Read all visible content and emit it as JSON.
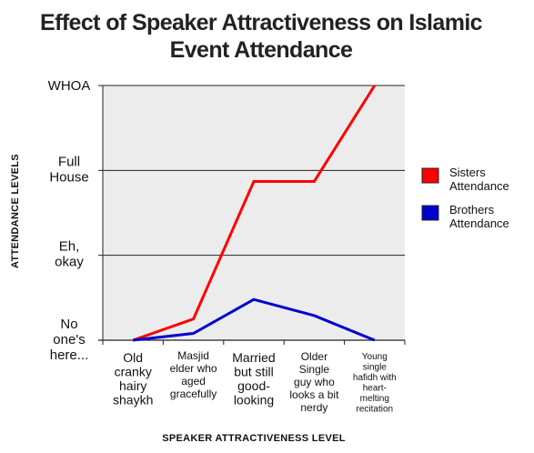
{
  "chart_data": {
    "type": "line",
    "title": [
      "Effect of Speaker Attractiveness on Islamic",
      "Event Attendance"
    ],
    "xlabel": "SPEAKER ATTRACTIVENESS LEVEL",
    "ylabel": "ATTENDANCE LEVELS",
    "categories": [
      [
        "Old",
        "cranky",
        "hairy",
        "shaykh"
      ],
      [
        "Masjid",
        "elder who",
        "aged",
        "gracefully"
      ],
      [
        "Married",
        "but still",
        "good-",
        "looking"
      ],
      [
        "Older",
        "Single",
        "guy who",
        "looks a bit",
        "nerdy"
      ],
      [
        "Young",
        "single",
        "hafidh with",
        "heart-",
        "melting",
        "recitation"
      ]
    ],
    "y_ticks": [
      [
        "No",
        "one's",
        "here..."
      ],
      [
        "Eh,",
        "okay"
      ],
      [
        "Full",
        "House"
      ],
      [
        "WHOA"
      ]
    ],
    "ylim": [
      0,
      3
    ],
    "grid": true,
    "legend_position": "right",
    "series": [
      {
        "name": [
          "Sisters",
          "Attendance"
        ],
        "color": "#ff0000",
        "values": [
          0,
          0.25,
          1.87,
          1.87,
          3.0
        ]
      },
      {
        "name": [
          "Brothers",
          "Attendance"
        ],
        "color": "#0000cc",
        "values": [
          0,
          0.08,
          0.48,
          0.29,
          0
        ]
      }
    ]
  }
}
